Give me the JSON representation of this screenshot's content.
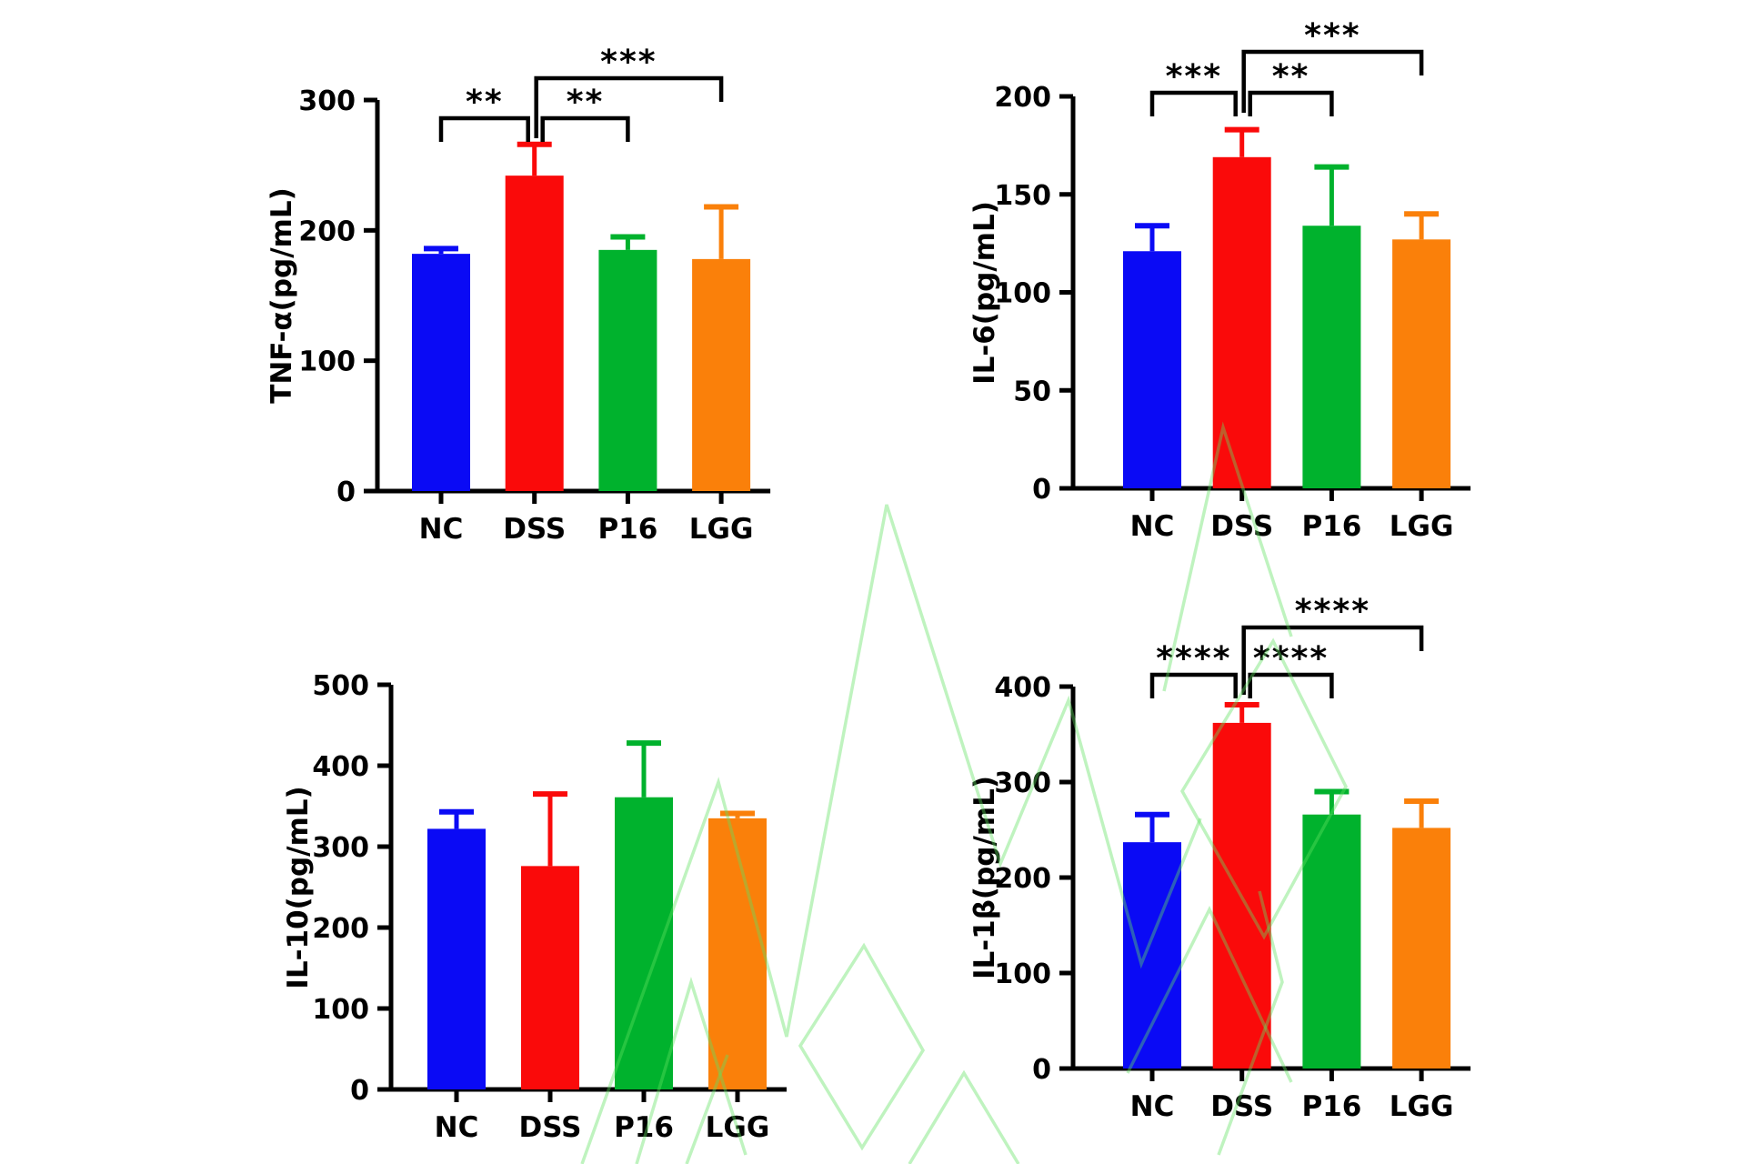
{
  "page": {
    "background": "#ffffff"
  },
  "watermark": {
    "color": "#5fe05f",
    "opacity": 0.4
  },
  "groups": [
    "NC",
    "DSS",
    "P16",
    "LGG"
  ],
  "group_colors": {
    "NC": "#0A0AF5",
    "DSS": "#FA0A0A",
    "P16": "#00B22D",
    "LGG": "#FA800A"
  },
  "chart_data": [
    {
      "id": "tnf-alpha",
      "type": "bar",
      "ylabel": "TNF-α(pg/mL)",
      "xlabel": "",
      "categories": [
        "NC",
        "DSS",
        "P16",
        "LGG"
      ],
      "values": [
        182,
        242,
        185,
        178
      ],
      "error_tops": [
        186,
        266,
        195,
        218
      ],
      "bar_colors": [
        "#0A0AF5",
        "#FA0A0A",
        "#00B22D",
        "#FA800A"
      ],
      "ylim": [
        0,
        300
      ],
      "yticks": [
        0,
        100,
        200,
        300
      ],
      "grid": false,
      "significance": [
        {
          "between": [
            "NC",
            "DSS"
          ],
          "label": "**",
          "level": 1
        },
        {
          "between": [
            "DSS",
            "P16"
          ],
          "label": "**",
          "level": 1
        },
        {
          "between": [
            "DSS",
            "LGG"
          ],
          "label": "***",
          "level": 2
        }
      ]
    },
    {
      "id": "il-6",
      "type": "bar",
      "ylabel": "IL-6(pg/mL)",
      "xlabel": "",
      "categories": [
        "NC",
        "DSS",
        "P16",
        "LGG"
      ],
      "values": [
        121,
        169,
        134,
        127
      ],
      "error_tops": [
        134,
        183,
        164,
        140
      ],
      "bar_colors": [
        "#0A0AF5",
        "#FA0A0A",
        "#00B22D",
        "#FA800A"
      ],
      "ylim": [
        0,
        200
      ],
      "yticks": [
        0,
        50,
        100,
        150,
        200
      ],
      "grid": false,
      "significance": [
        {
          "between": [
            "NC",
            "DSS"
          ],
          "label": "***",
          "level": 1
        },
        {
          "between": [
            "DSS",
            "P16"
          ],
          "label": "**",
          "level": 1
        },
        {
          "between": [
            "DSS",
            "LGG"
          ],
          "label": "***",
          "level": 2
        }
      ]
    },
    {
      "id": "il-10",
      "type": "bar",
      "ylabel": "IL-10(pg/mL)",
      "xlabel": "",
      "categories": [
        "NC",
        "DSS",
        "P16",
        "LGG"
      ],
      "values": [
        322,
        276,
        361,
        335
      ],
      "error_tops": [
        343,
        365,
        428,
        341
      ],
      "bar_colors": [
        "#0A0AF5",
        "#FA0A0A",
        "#00B22D",
        "#FA800A"
      ],
      "ylim": [
        0,
        500
      ],
      "yticks": [
        0,
        100,
        200,
        300,
        400,
        500
      ],
      "grid": false,
      "significance": []
    },
    {
      "id": "il-1beta",
      "type": "bar",
      "ylabel": "IL-1β(pg/mL)",
      "xlabel": "",
      "categories": [
        "NC",
        "DSS",
        "P16",
        "LGG"
      ],
      "values": [
        237,
        362,
        266,
        252
      ],
      "error_tops": [
        266,
        381,
        290,
        280
      ],
      "bar_colors": [
        "#0A0AF5",
        "#FA0A0A",
        "#00B22D",
        "#FA800A"
      ],
      "ylim": [
        0,
        400
      ],
      "yticks": [
        0,
        100,
        200,
        300,
        400
      ],
      "grid": false,
      "significance": [
        {
          "between": [
            "NC",
            "DSS"
          ],
          "label": "****",
          "level": 1
        },
        {
          "between": [
            "DSS",
            "P16"
          ],
          "label": "****",
          "level": 1
        },
        {
          "between": [
            "DSS",
            "LGG"
          ],
          "label": "****",
          "level": 2
        }
      ]
    }
  ]
}
